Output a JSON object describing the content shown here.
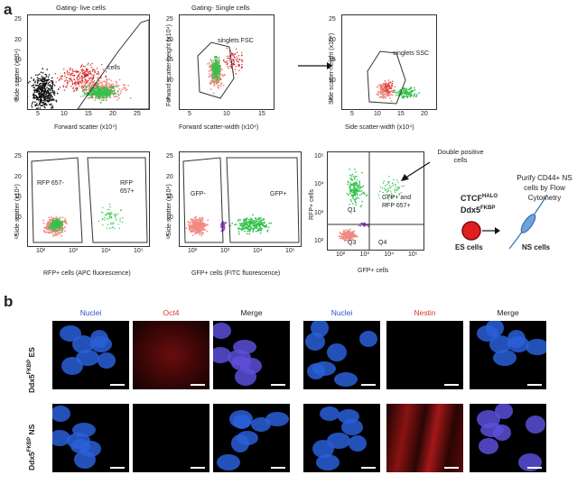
{
  "panel_a_letter": "a",
  "panel_b_letter": "b",
  "plots": {
    "p1": {
      "title": "Gating- live cells",
      "xlabel": "Forward scatter (x10⁴)",
      "ylabel": "Side scatter (x10⁴)",
      "yticks": [
        "25",
        "20",
        "15",
        "10",
        "5"
      ],
      "xticks": [
        "5",
        "10",
        "15",
        "20",
        "25"
      ],
      "gates": [
        "cells"
      ]
    },
    "p2": {
      "title": "Gating- Single cells",
      "xlabel": "Forward scatter-width (x10⁴)",
      "ylabel": "Forward scatter-height (x10⁴)",
      "yticks": [
        "25",
        "20",
        "15",
        "10",
        "5"
      ],
      "xticks": [
        "5",
        "10",
        "15"
      ],
      "gates": [
        "singlets FSC"
      ]
    },
    "p3": {
      "title": "",
      "xlabel": "Side scatter-width (x10⁴)",
      "ylabel": "Side scatter-height (x10⁴)",
      "yticks": [
        "25",
        "20",
        "15",
        "10",
        "5"
      ],
      "xticks": [
        "5",
        "10",
        "15",
        "20"
      ],
      "gates": [
        "singlets SSC"
      ]
    },
    "p4": {
      "title": "",
      "xlabel": "RFP+ cells (APC fluorescence)",
      "ylabel": "Side scatter (x10⁴)",
      "yticks": [
        "25",
        "20",
        "15",
        "10",
        "5"
      ],
      "xticks": [
        "10²",
        "10³",
        "10⁴",
        "10⁵"
      ],
      "gates": [
        "RFP 657-",
        "RFP 657+"
      ]
    },
    "p5": {
      "title": "",
      "xlabel": "GFP+ cells (FITC fluorescence)",
      "ylabel": "Side scatter (x10⁴)",
      "yticks": [
        "25",
        "20",
        "15",
        "10",
        "5"
      ],
      "xticks": [
        "10²",
        "10³",
        "10⁴",
        "10⁵"
      ],
      "gates": [
        "GFP-",
        "GFP+"
      ]
    },
    "p6": {
      "title": "",
      "xlabel": "GFP+ cells",
      "ylabel": "RFP+ cells",
      "yticks": [
        "10⁵",
        "10⁴",
        "10³",
        "10²"
      ],
      "xticks": [
        "10²",
        "10³",
        "10⁴",
        "10⁵"
      ],
      "gates": [
        "Q1",
        "GFP+ and RFP 657+",
        "Q3",
        "Q4"
      ]
    }
  },
  "double_positive_label": "Double positive cells",
  "schematic": {
    "line1_base": "CTCF",
    "line1_sup": "HALO",
    "line2_base": "Ddx5",
    "line2_sup": "FKBP",
    "purify_text": "Purify CD44+ NS cells by Flow Cytometry",
    "es_label": "ES cells",
    "ns_label": "NS cells"
  },
  "microscopy": {
    "left_headers": [
      "Nuclei",
      "Oct4",
      "Merge"
    ],
    "right_headers": [
      "Nuclei",
      "Nestin",
      "Merge"
    ],
    "header_colors": [
      "#2f4fd0",
      "#d23a2a",
      "#222222"
    ],
    "row_labels": [
      {
        "base": "Ddx5",
        "sup": "FKBP",
        "suffix": " ES"
      },
      {
        "base": "Ddx5",
        "sup": "FKBP",
        "suffix": " NS"
      }
    ]
  },
  "colors": {
    "green": "#33c24a",
    "salmon": "#f08a80",
    "red": "#d62020",
    "black": "#111111",
    "blue": "#2a5fd8",
    "purple": "#9a3fd0"
  }
}
